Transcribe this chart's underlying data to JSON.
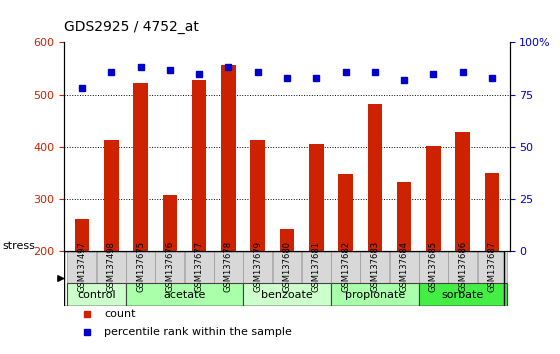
{
  "title": "GDS2925 / 4752_at",
  "samples": [
    "GSM137497",
    "GSM137498",
    "GSM137675",
    "GSM137676",
    "GSM137677",
    "GSM137678",
    "GSM137679",
    "GSM137680",
    "GSM137681",
    "GSM137682",
    "GSM137683",
    "GSM137684",
    "GSM137685",
    "GSM137686",
    "GSM137687"
  ],
  "counts": [
    260,
    413,
    523,
    307,
    528,
    556,
    413,
    242,
    404,
    348,
    481,
    332,
    401,
    428,
    350
  ],
  "percentiles": [
    78,
    86,
    88,
    87,
    85,
    88,
    86,
    83,
    83,
    86,
    86,
    82,
    85,
    86,
    83
  ],
  "bar_color": "#cc2200",
  "dot_color": "#0000cc",
  "ylim_left": [
    200,
    600
  ],
  "ylim_right": [
    0,
    100
  ],
  "yticks_left": [
    200,
    300,
    400,
    500,
    600
  ],
  "yticks_right": [
    0,
    25,
    50,
    75,
    100
  ],
  "yticks_right_labels": [
    "0",
    "25",
    "50",
    "75",
    "100%"
  ],
  "groups": [
    {
      "label": "control",
      "start": 0,
      "end": 1,
      "color": "#ccffcc"
    },
    {
      "label": "acetate",
      "start": 2,
      "end": 5,
      "color": "#aaffaa"
    },
    {
      "label": "benzoate",
      "start": 6,
      "end": 8,
      "color": "#ccffcc"
    },
    {
      "label": "propionate",
      "start": 9,
      "end": 11,
      "color": "#aaffaa"
    },
    {
      "label": "sorbate",
      "start": 12,
      "end": 14,
      "color": "#44ee44"
    }
  ],
  "stress_label": "stress",
  "legend_count_label": "count",
  "legend_pct_label": "percentile rank within the sample",
  "grid_dotted_at": [
    300,
    400,
    500
  ],
  "bar_color_left": "#cc2200",
  "tick_color_right": "#0000cc",
  "bar_width": 0.5,
  "xticklabel_fontsize": 6.5,
  "yticklabel_fontsize": 8,
  "title_fontsize": 10,
  "group_label_fontsize": 8
}
